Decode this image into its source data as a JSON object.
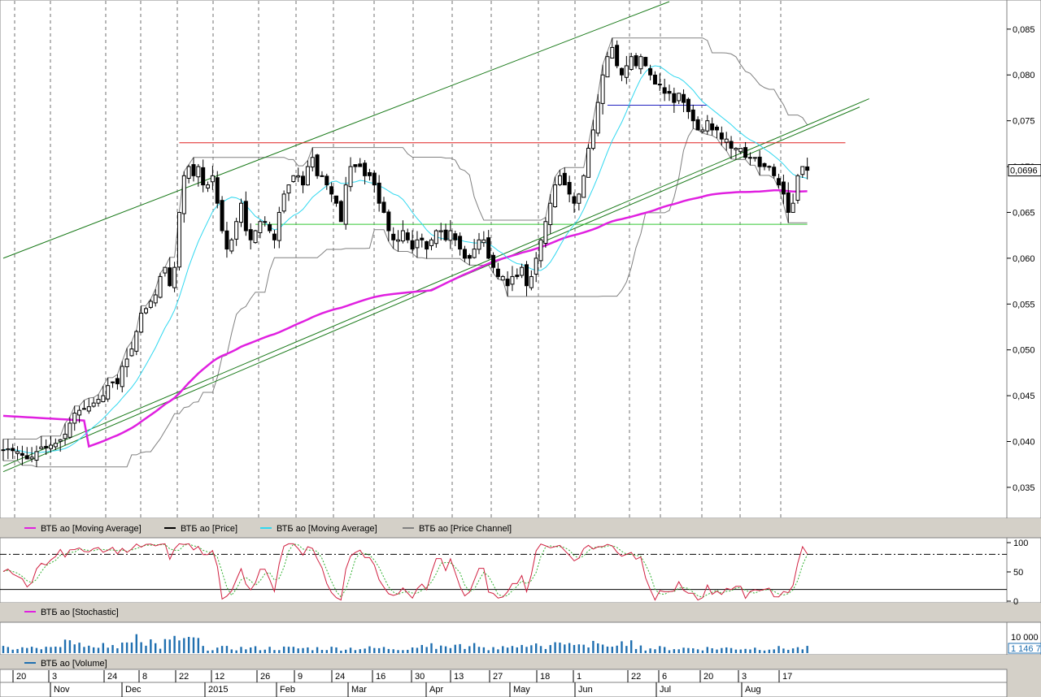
{
  "chart_data": [
    {
      "type": "candlestick",
      "panel": "price",
      "ylim": [
        0.0318,
        0.088
      ],
      "y_ticks": [
        "0,035",
        "0,040",
        "0,045",
        "0,050",
        "0,055",
        "0,060",
        "0,065",
        "0,070",
        "0,075",
        "0,080",
        "0,085"
      ],
      "last_price_label": "0,0696",
      "legend": [
        {
          "name": "ВТБ ао [Moving Average]",
          "color": "#e020e0"
        },
        {
          "name": "ВТБ ао [Price]",
          "color": "#000000"
        },
        {
          "name": "ВТБ ао [Moving Average]",
          "color": "#30d8f0"
        },
        {
          "name": "ВТБ ао [Price Channel]",
          "color": "#808080"
        }
      ],
      "close_series": [
        0.0391,
        0.0392,
        0.039,
        0.0389,
        0.0385,
        0.0381,
        0.0383,
        0.0389,
        0.0394,
        0.0393,
        0.0396,
        0.0398,
        0.0402,
        0.0408,
        0.042,
        0.0431,
        0.0434,
        0.0436,
        0.0438,
        0.0442,
        0.0446,
        0.045,
        0.0461,
        0.0465,
        0.0463,
        0.0482,
        0.049,
        0.0501,
        0.052,
        0.054,
        0.0545,
        0.0553,
        0.056,
        0.058,
        0.059,
        0.057,
        0.059,
        0.065,
        0.069,
        0.07,
        0.069,
        0.07,
        0.068,
        0.068,
        0.069,
        0.066,
        0.063,
        0.061,
        0.062,
        0.064,
        0.066,
        0.063,
        0.062,
        0.063,
        0.064,
        0.064,
        0.063,
        0.062,
        0.065,
        0.067,
        0.068,
        0.069,
        0.069,
        0.068,
        0.07,
        0.071,
        0.069,
        0.069,
        0.068,
        0.067,
        0.066,
        0.064,
        0.068,
        0.07,
        0.07,
        0.07,
        0.069,
        0.069,
        0.068,
        0.066,
        0.065,
        0.063,
        0.062,
        0.062,
        0.063,
        0.062,
        0.061,
        0.062,
        0.062,
        0.061,
        0.062,
        0.063,
        0.063,
        0.062,
        0.063,
        0.062,
        0.061,
        0.06,
        0.06,
        0.061,
        0.062,
        0.062,
        0.06,
        0.059,
        0.058,
        0.058,
        0.057,
        0.058,
        0.058,
        0.059,
        0.057,
        0.058,
        0.06,
        0.062,
        0.064,
        0.066,
        0.068,
        0.069,
        0.068,
        0.067,
        0.066,
        0.067,
        0.069,
        0.072,
        0.074,
        0.077,
        0.08,
        0.082,
        0.083,
        0.081,
        0.08,
        0.081,
        0.082,
        0.081,
        0.082,
        0.081,
        0.08,
        0.079,
        0.079,
        0.078,
        0.078,
        0.077,
        0.078,
        0.077,
        0.076,
        0.075,
        0.074,
        0.074,
        0.075,
        0.074,
        0.074,
        0.073,
        0.073,
        0.072,
        0.072,
        0.072,
        0.071,
        0.071,
        0.071,
        0.07,
        0.07,
        0.07,
        0.069,
        0.068,
        0.067,
        0.065,
        0.066,
        0.069,
        0.07,
        0.0696
      ],
      "lines": [
        {
          "name": "upper-channel-line",
          "color": "#1a7a1a",
          "from": [
            0,
            0.06
          ],
          "to": [
            140,
            0.088
          ]
        },
        {
          "name": "middle-channel-line",
          "color": "#1a7a1a",
          "from": [
            0,
            0.0367
          ],
          "to": [
            180,
            0.0765
          ]
        },
        {
          "name": "lower-channel-line",
          "color": "#1a7a1a",
          "from": [
            0,
            0.0373
          ],
          "to": [
            182,
            0.0774
          ]
        },
        {
          "name": "red-resistance-line",
          "color": "#e02020",
          "from": [
            37,
            0.0726
          ],
          "to": [
            177,
            0.0726
          ]
        },
        {
          "name": "green-support-line",
          "color": "#30c830",
          "from": [
            53,
            0.0637
          ],
          "to": [
            169,
            0.0637
          ]
        },
        {
          "name": "blue-level-line",
          "color": "#2020c0",
          "from": [
            127,
            0.0767
          ],
          "to": [
            148,
            0.0767
          ]
        }
      ]
    },
    {
      "type": "line",
      "panel": "stochastic",
      "ylim": [
        0,
        100
      ],
      "y_ticks": [
        "100",
        "50",
        "0"
      ],
      "levels": [
        80,
        20
      ],
      "legend": [
        {
          "name": "ВТБ ао [Stochastic]",
          "color": "#e020e0"
        }
      ]
    },
    {
      "type": "bar",
      "panel": "volume",
      "y_ticks": [
        "10 000"
      ],
      "last_value_label": "1 146 7",
      "legend": [
        {
          "name": "ВТБ ао [Volume]",
          "color": "#1f6fb0"
        }
      ]
    },
    {
      "type": "axis",
      "panel": "time",
      "day_ticks": [
        "20",
        "3",
        "24",
        "8",
        "22",
        "12",
        "26",
        "9",
        "24",
        "16",
        "30",
        "13",
        "27",
        "18",
        "1",
        "22",
        "6",
        "20",
        "3",
        "17"
      ],
      "month_labels": [
        "Nov",
        "Dec",
        "2015",
        "Feb",
        "Mar",
        "Apr",
        "May",
        "Jun",
        "Jul",
        "Aug"
      ]
    }
  ]
}
